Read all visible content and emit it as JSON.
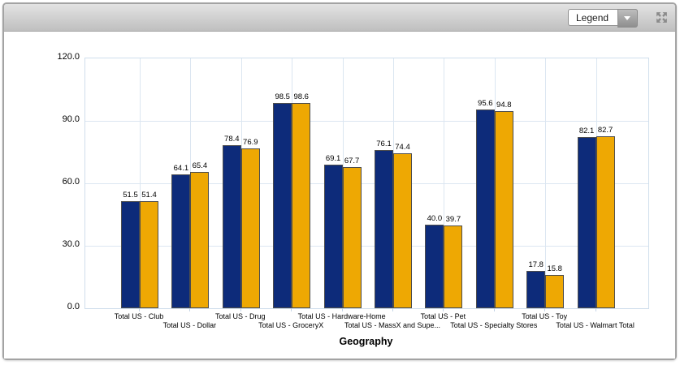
{
  "toolbar": {
    "legend_dropdown": {
      "value": "Legend"
    },
    "icons": {
      "dropdown_arrow": "chevron-down-icon",
      "maximize": "maximize-arrows-icon"
    }
  },
  "chart_data": {
    "type": "bar",
    "title": "",
    "xlabel": "Geography",
    "ylabel": "",
    "ylim": [
      0,
      120
    ],
    "yticks": [
      0,
      30,
      60,
      90,
      120
    ],
    "ytick_labels": [
      "0.0",
      "30.0",
      "60.0",
      "90.0",
      "120.0"
    ],
    "grid": true,
    "value_labels": true,
    "legend_position": "collapsed-dropdown",
    "categories": [
      "Total US - Club",
      "Total US - Dollar",
      "Total US - Drug",
      "Total US - GroceryX",
      "Total US - Hardware-Home",
      "Total US - MassX and Supe...",
      "Total US - Pet",
      "Total US - Specialty Stores",
      "Total US - Toy",
      "Total US - Walmart Total"
    ],
    "series": [
      {
        "color": "#0D2B7A",
        "values": [
          51.5,
          64.1,
          78.4,
          98.5,
          69.1,
          76.1,
          40.0,
          95.6,
          17.8,
          82.1
        ]
      },
      {
        "color": "#EEA803",
        "values": [
          51.4,
          65.4,
          76.9,
          98.6,
          67.7,
          74.4,
          39.7,
          94.8,
          15.8,
          82.7
        ]
      }
    ]
  },
  "colors": {
    "bar_navy": "#0D2B7A",
    "bar_gold": "#EEA803",
    "bar_border": "#4D4D4D",
    "gridline": "#DBE6F1",
    "plot_border": "#CFDEEC",
    "toolbar_top": "#E3E3E3",
    "toolbar_bottom": "#BFBFBF"
  }
}
